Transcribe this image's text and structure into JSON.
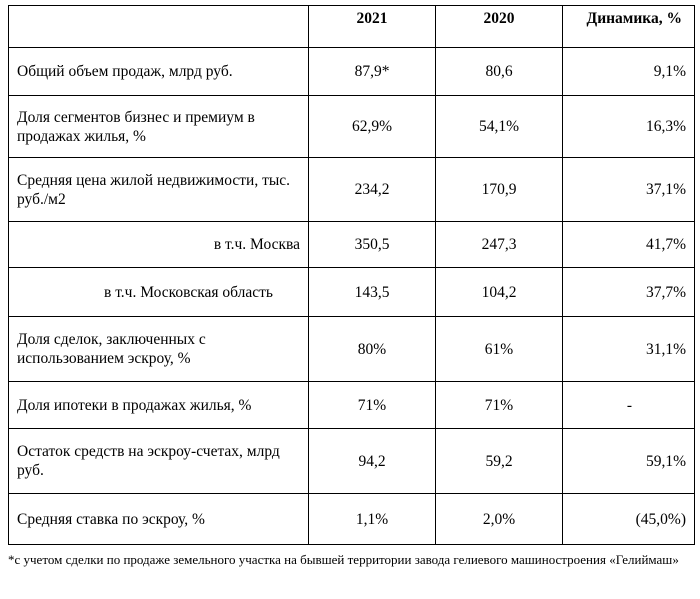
{
  "table": {
    "header": {
      "label": "",
      "year_2021": "2021",
      "year_2020": "2020",
      "dynamics": "Динамика, %"
    },
    "rows": [
      {
        "label": "Общий объем продаж, млрд руб.",
        "v2021": "87,9*",
        "v2020": "80,6",
        "dyn": "9,1%"
      },
      {
        "label": "Доля сегментов бизнес и премиум в продажах жилья, %",
        "v2021": "62,9%",
        "v2020": "54,1%",
        "dyn": "16,3%"
      },
      {
        "label": "Средняя цена жилой недвижимости, тыс. руб./м2",
        "v2021": "234,2",
        "v2020": "170,9",
        "dyn": "37,1%"
      },
      {
        "label": "в т.ч. Москва",
        "v2021": "350,5",
        "v2020": "247,3",
        "dyn": "41,7%"
      },
      {
        "label": "в т.ч. Московская область",
        "v2021": "143,5",
        "v2020": "104,2",
        "dyn": "37,7%"
      },
      {
        "label": "Доля сделок, заключенных с использованием эскроу, %",
        "v2021": "80%",
        "v2020": "61%",
        "dyn": "31,1%"
      },
      {
        "label": "Доля ипотеки в продажах жилья, %",
        "v2021": "71%",
        "v2020": "71%",
        "dyn": "-"
      },
      {
        "label": "Остаток средств на эскроу-счетах, млрд руб.",
        "v2021": "94,2",
        "v2020": "59,2",
        "dyn": "59,1%"
      },
      {
        "label": "Средняя ставка по эскроу, %",
        "v2021": "1,1%",
        "v2020": "2,0%",
        "dyn": "(45,0%)"
      }
    ]
  },
  "footnote": "*с учетом сделки по продаже земельного участка на бывшей территории завода гелиевого машиностроения «Гелиймаш»"
}
